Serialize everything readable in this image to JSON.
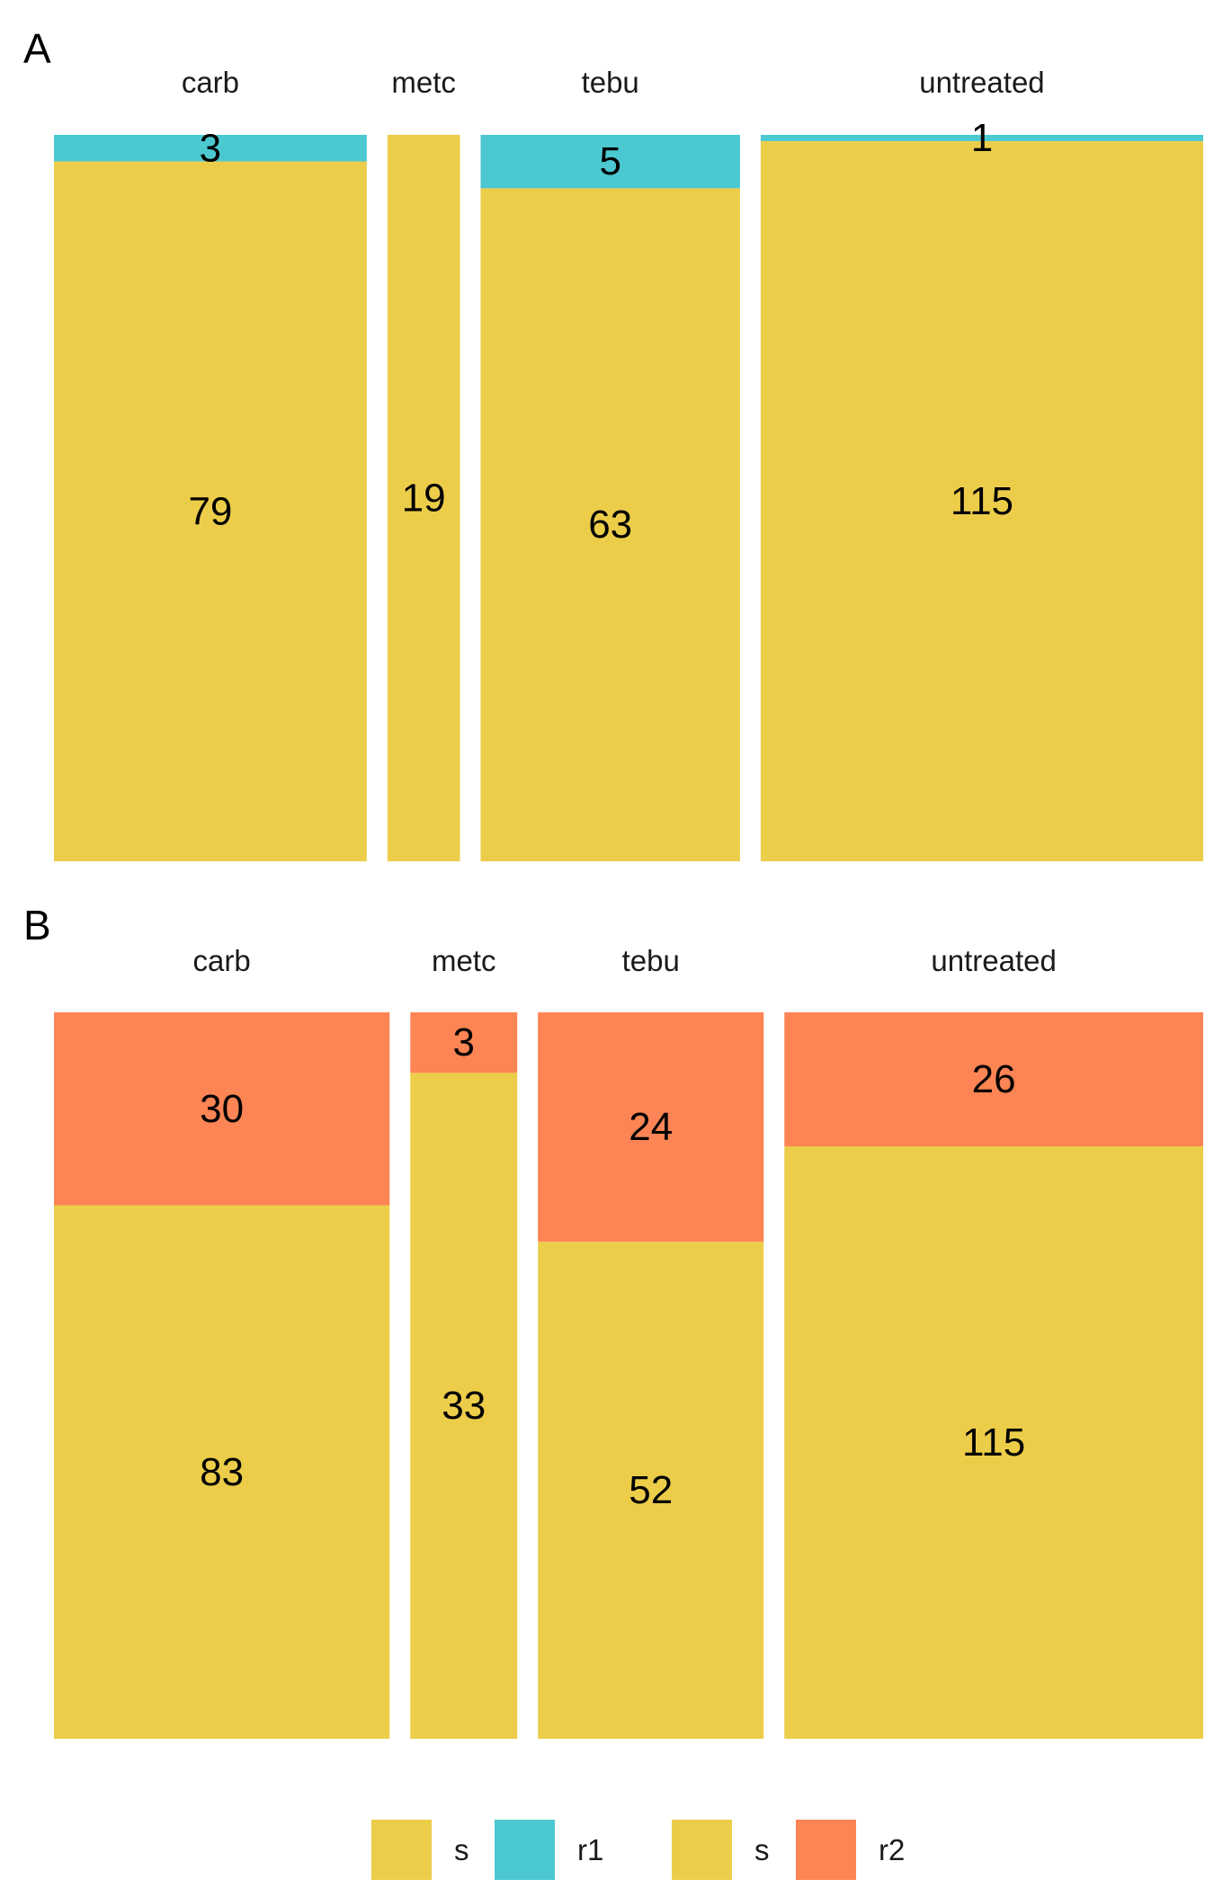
{
  "colors": {
    "s": "#ECCD4A",
    "r1": "#4CC8D1",
    "r2": "#FD8454",
    "background": "#FFFFFF"
  },
  "chart_data": [
    {
      "type": "bar",
      "subtype": "mosaic",
      "panel": "A",
      "categories": [
        "carb",
        "metc",
        "tebu",
        "untreated"
      ],
      "series": [
        {
          "name": "s",
          "values": [
            79,
            19,
            63,
            115
          ]
        },
        {
          "name": "r1",
          "values": [
            3,
            0,
            5,
            1
          ]
        }
      ],
      "stack_order": [
        "s",
        "r1"
      ],
      "grid": false,
      "axes": false
    },
    {
      "type": "bar",
      "subtype": "mosaic",
      "panel": "B",
      "categories": [
        "carb",
        "metc",
        "tebu",
        "untreated"
      ],
      "series": [
        {
          "name": "s",
          "values": [
            83,
            33,
            52,
            115
          ]
        },
        {
          "name": "r2",
          "values": [
            30,
            3,
            24,
            26
          ]
        }
      ],
      "stack_order": [
        "s",
        "r2"
      ],
      "grid": false,
      "axes": false
    }
  ],
  "legend": {
    "placement": "bottom",
    "entries": [
      {
        "label": "s",
        "color_key": "s"
      },
      {
        "label": "r1",
        "color_key": "r1"
      },
      {
        "label": "s",
        "color_key": "s"
      },
      {
        "label": "r2",
        "color_key": "r2"
      }
    ]
  }
}
